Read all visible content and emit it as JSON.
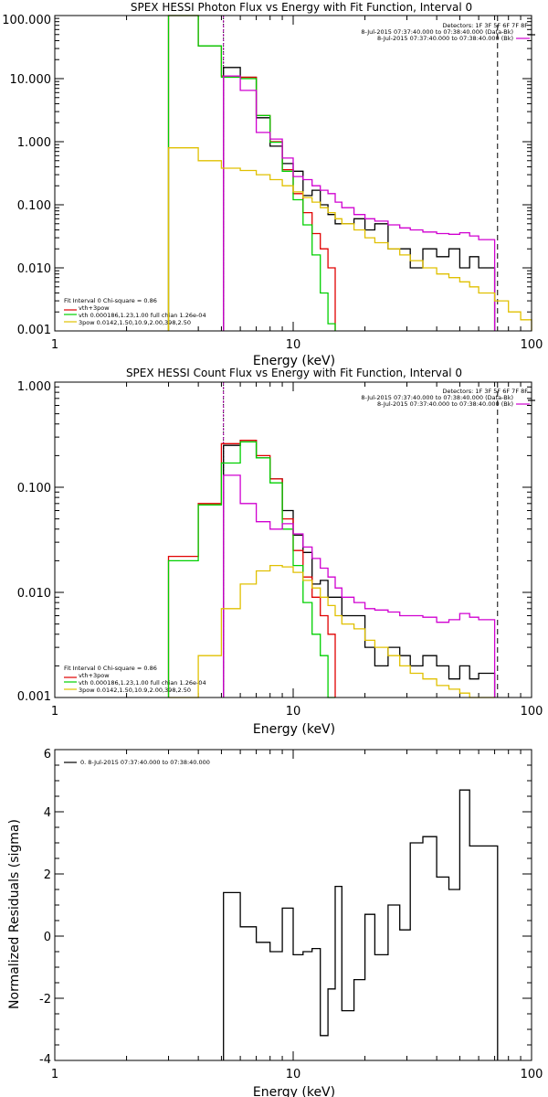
{
  "chart_data": [
    {
      "type": "line",
      "step": true,
      "title": "SPEX HESSI Photon Flux vs Energy with Fit Function, Interval 0",
      "xlabel": "Energy (keV)",
      "ylabel": "",
      "xscale": "log",
      "yscale": "log",
      "xlim": [
        1,
        100
      ],
      "ylim": [
        0.001,
        100
      ],
      "xticks": [
        "1",
        "10",
        "100"
      ],
      "yticks": [
        "0.001",
        "0.010",
        "0.100",
        "1.000",
        "10.000",
        "100.000"
      ],
      "vlines": [
        {
          "x": 5.1,
          "style": "dotted",
          "color": "#000000"
        },
        {
          "x": 5.1,
          "style": "solid",
          "color": "#a000a0"
        },
        {
          "x": 72,
          "style": "dashed",
          "color": "#000000"
        }
      ],
      "legend_right": [
        "Detectors: 1F 3F 5F 6F 7F 8F",
        "8-Jul-2015 07:37:40.000 to 07:38:40.000 (Data-Bk)",
        "8-Jul-2015 07:37:40.000 to 07:38:40.000 (Bk)"
      ],
      "legend_left": [
        "Fit Interval 0   Chi-square = 0.86",
        "vth+3pow",
        "vth 0.000186,1.23,1.00  full chian 1.26e-04",
        "3pow 0.0142,1.50,10.9,2.00,398,2.50"
      ],
      "edges": [
        3.0,
        4.0,
        5.0,
        6.0,
        7.0,
        8.0,
        9.0,
        10.0,
        11.0,
        12.0,
        13.0,
        14.0,
        15.0,
        16.0,
        18.0,
        20.0,
        22.0,
        25.0,
        28.0,
        31.0,
        35.0,
        40.0,
        45.0,
        50.0,
        55.0,
        60.0,
        70.0,
        80.0,
        90.0,
        100.0
      ],
      "series": [
        {
          "color": "#000000",
          "from": 5.1,
          "to": 72,
          "values": [
            null,
            null,
            15,
            10.5,
            2.4,
            0.85,
            0.45,
            0.34,
            0.14,
            0.17,
            0.1,
            0.07,
            0.05,
            0.05,
            0.06,
            0.04,
            0.05,
            0.02,
            0.02,
            0.01,
            0.02,
            0.015,
            0.02,
            0.01,
            0.015,
            0.01,
            null,
            null,
            null
          ]
        },
        {
          "color": "#e00000",
          "from": 3.0,
          "to": 15,
          "values": [
            100,
            33,
            11,
            10.5,
            2.6,
            1.0,
            0.36,
            0.15,
            0.075,
            0.035,
            0.02,
            0.01,
            null,
            null,
            null,
            null,
            null,
            null,
            null,
            null,
            null,
            null,
            null,
            null,
            null,
            null,
            null,
            null,
            null
          ]
        },
        {
          "color": "#00d000",
          "from": 3.0,
          "to": 15,
          "values": [
            100,
            33,
            10.5,
            10,
            2.6,
            0.98,
            0.34,
            0.12,
            0.048,
            0.016,
            0.004,
            0.0013,
            null,
            null,
            null,
            null,
            null,
            null,
            null,
            null,
            null,
            null,
            null,
            null,
            null,
            null,
            null,
            null,
            null
          ]
        },
        {
          "color": "#d000d0",
          "from": 5.1,
          "to": 72,
          "values": [
            null,
            null,
            11,
            6.5,
            1.4,
            1.1,
            0.55,
            0.28,
            0.25,
            0.2,
            0.17,
            0.15,
            0.11,
            0.09,
            0.07,
            0.06,
            0.055,
            0.048,
            0.043,
            0.04,
            0.037,
            0.035,
            0.034,
            0.036,
            0.032,
            0.028,
            null,
            null,
            null
          ]
        },
        {
          "color": "#e0c000",
          "from": 3.0,
          "to": 100,
          "values": [
            0.8,
            0.5,
            0.38,
            0.35,
            0.3,
            0.25,
            0.2,
            0.16,
            0.13,
            0.11,
            0.09,
            0.075,
            0.06,
            0.05,
            0.04,
            0.03,
            0.025,
            0.02,
            0.016,
            0.013,
            0.01,
            0.008,
            0.007,
            0.006,
            0.005,
            0.004,
            0.003,
            0.002,
            0.0015
          ]
        }
      ]
    },
    {
      "type": "line",
      "step": true,
      "title": "SPEX HESSI Count Flux vs Energy with Fit Function, Interval 0",
      "xlabel": "Energy (keV)",
      "ylabel": "",
      "xscale": "log",
      "yscale": "log",
      "xlim": [
        1,
        100
      ],
      "ylim": [
        0.001,
        1
      ],
      "xticks": [
        "1",
        "10",
        "100"
      ],
      "yticks": [
        "0.001",
        "0.010",
        "0.100",
        "1.000"
      ],
      "vlines": [
        {
          "x": 5.1,
          "style": "dotted",
          "color": "#000000"
        },
        {
          "x": 5.1,
          "style": "solid",
          "color": "#a000a0"
        },
        {
          "x": 72,
          "style": "dashed",
          "color": "#000000"
        }
      ],
      "legend_right": [
        "Detectors: 1F 3F 5F 6F 7F 8F",
        "8-Jul-2015 07:37:40.000 to 07:38:40.000 (Data-Bk)",
        "8-Jul-2015 07:37:40.000 to 07:38:40.000 (Bk)"
      ],
      "legend_left": [
        "Fit Interval 0   Chi-square = 0.86",
        "vth+3pow",
        "vth 0.000186,1.23,1.00  full chian 1.26e-04",
        "3pow 0.0142,1.50,10.9,2.00,398,2.50"
      ],
      "edges": [
        3.0,
        4.0,
        5.0,
        6.0,
        7.0,
        8.0,
        9.0,
        10.0,
        11.0,
        12.0,
        13.0,
        14.0,
        15.0,
        16.0,
        18.0,
        20.0,
        22.0,
        25.0,
        28.0,
        31.0,
        35.0,
        40.0,
        45.0,
        50.0,
        55.0,
        60.0,
        70.0,
        80.0,
        90.0,
        100.0
      ],
      "series": [
        {
          "color": "#000000",
          "from": 5.1,
          "to": 72,
          "values": [
            null,
            null,
            0.25,
            0.28,
            0.19,
            0.12,
            0.06,
            0.035,
            0.024,
            0.012,
            0.013,
            0.009,
            0.009,
            0.006,
            0.006,
            0.003,
            0.002,
            0.003,
            0.0025,
            0.002,
            0.0025,
            0.002,
            0.0015,
            0.002,
            0.0015,
            0.0017,
            null,
            null,
            null
          ]
        },
        {
          "color": "#e00000",
          "from": 3.0,
          "to": 15,
          "values": [
            0.022,
            0.07,
            0.26,
            0.28,
            0.2,
            0.12,
            0.05,
            0.025,
            0.014,
            0.009,
            0.006,
            0.004,
            null,
            null,
            null,
            null,
            null,
            null,
            null,
            null,
            null,
            null,
            null,
            null,
            null,
            null,
            null,
            null,
            null
          ]
        },
        {
          "color": "#00d000",
          "from": 3.0,
          "to": 15,
          "values": [
            0.02,
            0.068,
            0.17,
            0.27,
            0.19,
            0.11,
            0.04,
            0.018,
            0.008,
            0.004,
            0.0025,
            0.001,
            null,
            null,
            null,
            null,
            null,
            null,
            null,
            null,
            null,
            null,
            null,
            null,
            null,
            null,
            null,
            null,
            null
          ]
        },
        {
          "color": "#d000d0",
          "from": 5.1,
          "to": 72,
          "values": [
            null,
            null,
            0.13,
            0.07,
            0.047,
            0.04,
            0.045,
            0.036,
            0.027,
            0.021,
            0.017,
            0.014,
            0.011,
            0.009,
            0.008,
            0.007,
            0.0068,
            0.0065,
            0.006,
            0.006,
            0.0058,
            0.0052,
            0.0055,
            0.0063,
            0.0058,
            0.0055,
            null,
            null,
            null
          ]
        },
        {
          "color": "#e0c000",
          "from": 3.0,
          "to": 72,
          "values": [
            0.001,
            0.0025,
            0.007,
            0.012,
            0.016,
            0.018,
            0.0175,
            0.0155,
            0.013,
            0.011,
            0.009,
            0.0075,
            0.006,
            0.005,
            0.0045,
            0.0035,
            0.003,
            0.0025,
            0.002,
            0.0017,
            0.0015,
            0.0013,
            0.0012,
            0.0011,
            0.001,
            0.001,
            null,
            null,
            null
          ]
        }
      ]
    },
    {
      "type": "line",
      "step": true,
      "title": "",
      "xlabel": "Energy (keV)",
      "ylabel": "Normalized Residuals (sigma)",
      "xscale": "log",
      "yscale": "linear",
      "xlim": [
        1,
        100
      ],
      "ylim": [
        -4,
        6
      ],
      "xticks": [
        "1",
        "10",
        "100"
      ],
      "yticks": [
        "-4",
        "-2",
        "0",
        "2",
        "4",
        "6"
      ],
      "legend_left": [
        "0.  8-Jul-2015 07:37:40.000 to 07:38:40.000"
      ],
      "edges": [
        5.1,
        6.0,
        7.0,
        8.0,
        9.0,
        10.0,
        11.0,
        12.0,
        13.0,
        14.0,
        15.0,
        16.0,
        18.0,
        20.0,
        22.0,
        25.0,
        28.0,
        31.0,
        35.0,
        40.0,
        45.0,
        50.0,
        55.0,
        60.0,
        70.0,
        72.0
      ],
      "series": [
        {
          "color": "#000000",
          "values": [
            1.4,
            0.3,
            -0.2,
            -0.5,
            0.9,
            -0.6,
            -0.5,
            -0.4,
            -3.2,
            -1.7,
            1.6,
            -2.4,
            -1.4,
            0.7,
            -0.6,
            1.0,
            0.2,
            3.0,
            3.2,
            1.9,
            1.5,
            4.7,
            2.9,
            2.9,
            2.9
          ]
        }
      ]
    }
  ]
}
